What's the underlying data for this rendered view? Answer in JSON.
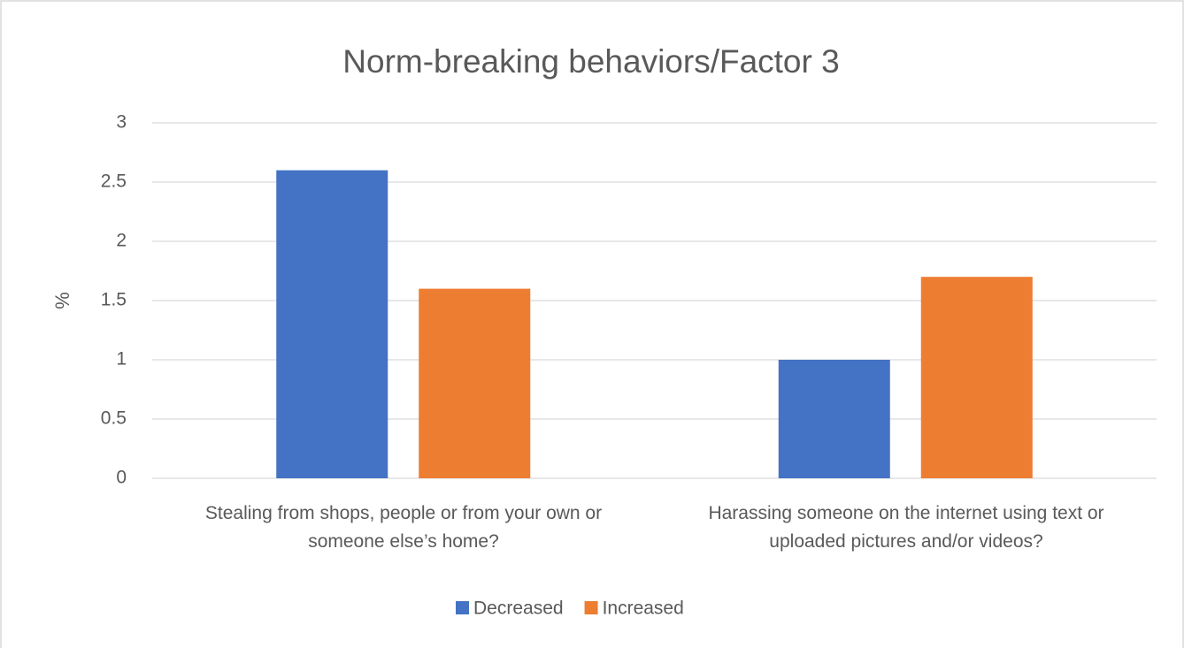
{
  "chart_data": {
    "type": "bar",
    "title": "Norm-breaking behaviors/Factor 3",
    "y_label": "%",
    "categories": [
      "Stealing from shops, people or from your own or someone else’s home?",
      "Harassing someone on the internet using text or uploaded pictures and/or videos?"
    ],
    "series": [
      {
        "name": "Decreased",
        "color": "#4472c4",
        "values": [
          2.6,
          1.0
        ]
      },
      {
        "name": "Increased",
        "color": "#ed7d31",
        "values": [
          1.6,
          1.7
        ]
      }
    ],
    "ylim": [
      0,
      3
    ],
    "yticks": [
      0,
      0.5,
      1,
      1.5,
      2,
      2.5,
      3
    ],
    "grid": true,
    "legend": "bottom"
  }
}
